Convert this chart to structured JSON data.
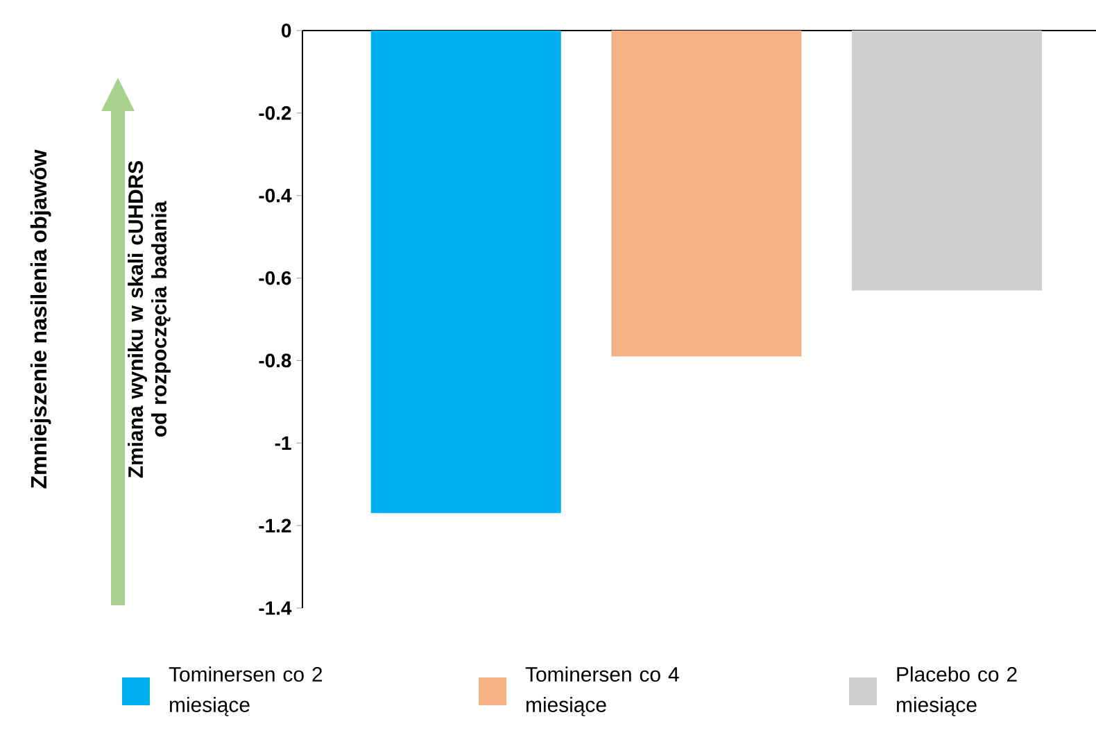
{
  "chart_data": {
    "type": "bar",
    "ylabel": "Zmiana wyniku w skali cUHDRS od rozpoczęcia badania",
    "categories": [
      null,
      null,
      null
    ],
    "series": [
      {
        "name": "Tominersen co 2 miesiące",
        "color": "#00b0f0",
        "values": [
          -1.17,
          null,
          null
        ]
      },
      {
        "name": "Tominersen co 4 miesiące",
        "color": "#f4b183",
        "values": [
          null,
          -0.79,
          null
        ]
      },
      {
        "name": "Placebo co 2 miesiące",
        "color": "#d0cece",
        "values": [
          null,
          null,
          -0.63
        ]
      }
    ],
    "ylim": [
      -1.4,
      0
    ],
    "yticks": [
      0,
      -0.2,
      -0.4,
      -0.6,
      -0.8,
      -1,
      -1.2,
      -1.4
    ],
    "legend": "bottom",
    "annotations": [
      "Zmniejszenie nasilenia objawów"
    ]
  }
}
